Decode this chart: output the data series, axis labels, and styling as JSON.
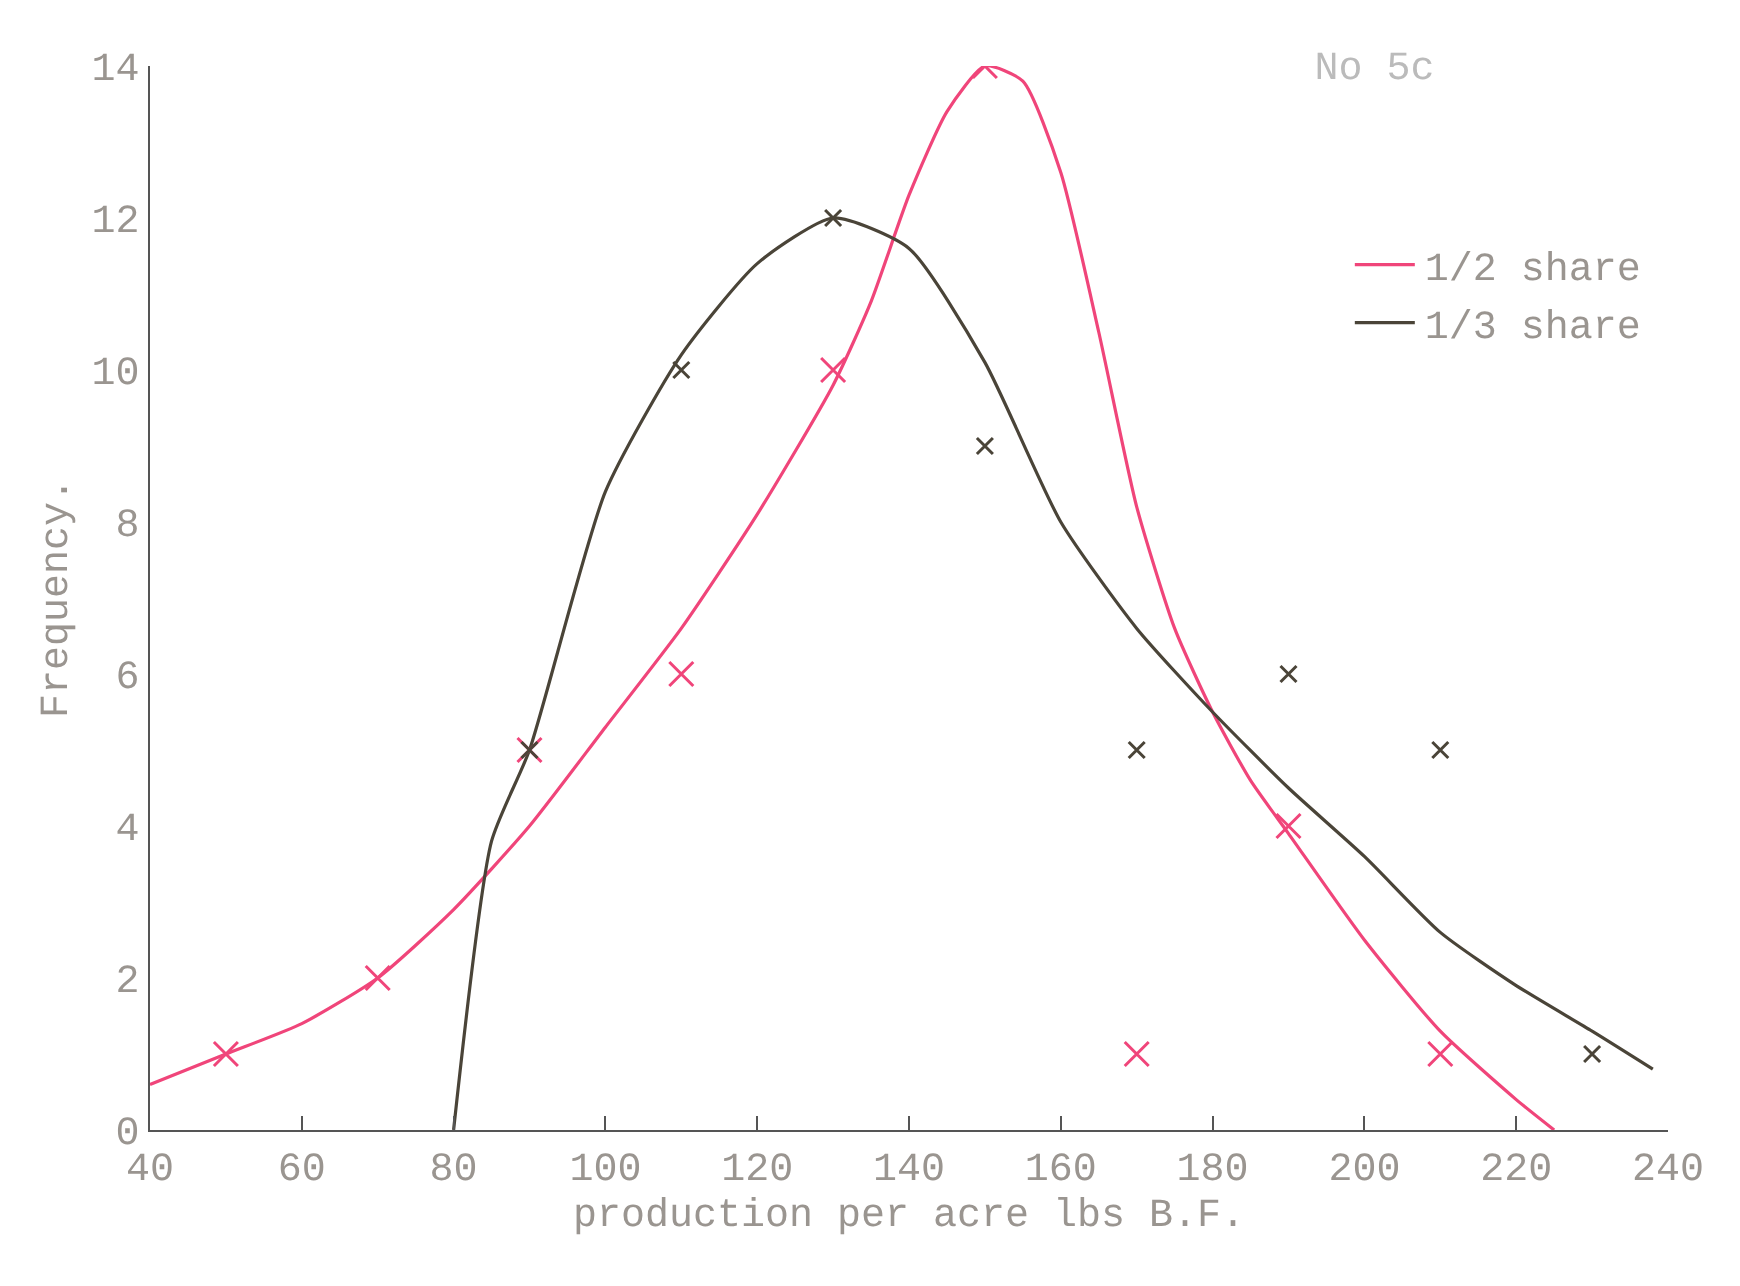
{
  "chart_data": {
    "type": "line",
    "title": "No 5c",
    "xlabel": "production per acre lbs B.F.",
    "ylabel": "Frequency.",
    "xlim": [
      40,
      240
    ],
    "xticks": [
      40,
      60,
      80,
      100,
      120,
      140,
      160,
      180,
      200,
      220,
      240
    ],
    "ylim": [
      0,
      14
    ],
    "yticks": [
      0,
      2,
      4,
      6,
      8,
      10,
      12,
      14
    ],
    "grid": false,
    "legend": "top right",
    "line_style": "solid",
    "series": [
      {
        "name": "1/2 share",
        "color": "#f0457a",
        "marker": "none",
        "x": [
          40,
          50,
          60,
          70,
          80,
          90,
          100,
          110,
          120,
          130,
          135,
          140,
          145,
          150,
          155,
          160,
          165,
          170,
          175,
          180,
          185,
          190,
          200,
          210,
          220,
          225
        ],
        "values": [
          0.6,
          1.0,
          1.4,
          2.0,
          2.9,
          4.0,
          5.3,
          6.6,
          8.1,
          9.8,
          10.9,
          12.3,
          13.4,
          14.0,
          13.8,
          12.6,
          10.5,
          8.2,
          6.6,
          5.5,
          4.6,
          3.9,
          2.5,
          1.3,
          0.4,
          0
        ]
      },
      {
        "name": "1/3 share",
        "color": "#4a4438",
        "marker": "none",
        "x": [
          80,
          85,
          90,
          100,
          110,
          120,
          130,
          140,
          150,
          160,
          170,
          180,
          190,
          200,
          210,
          220,
          230,
          238
        ],
        "values": [
          0,
          3.8,
          5.0,
          8.4,
          10.2,
          11.4,
          12.0,
          11.6,
          10.1,
          8.0,
          6.6,
          5.5,
          4.5,
          3.6,
          2.6,
          1.9,
          1.3,
          0.8
        ]
      },
      {
        "type": "scatter",
        "color": "#f0457a",
        "marker": "cross",
        "x": [
          50,
          70,
          90,
          110,
          130,
          150,
          170,
          190,
          210
        ],
        "values": [
          1,
          2,
          5,
          6,
          10,
          14,
          1,
          4,
          1
        ]
      },
      {
        "type": "scatter",
        "color": "#4a4438",
        "marker": "cross",
        "x": [
          90,
          110,
          130,
          150,
          170,
          190,
          210,
          230
        ],
        "values": [
          5,
          10,
          12,
          9,
          5,
          6,
          5,
          1
        ]
      }
    ]
  }
}
